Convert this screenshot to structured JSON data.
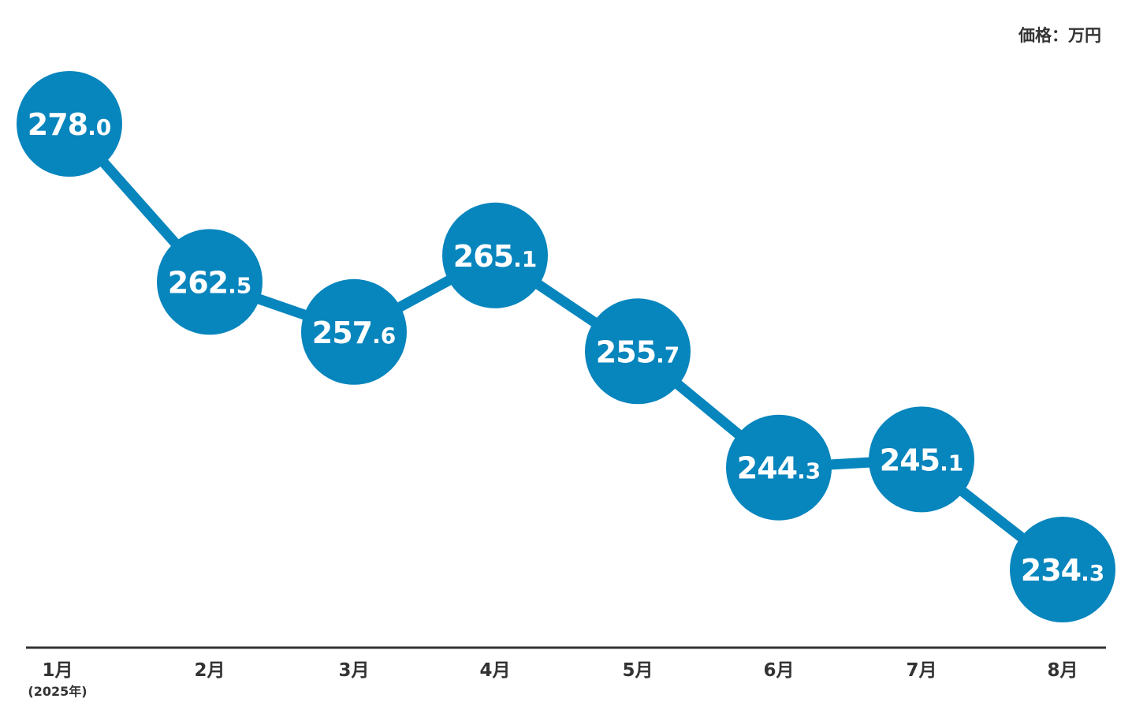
{
  "unit_label": "価格：万円",
  "colors": {
    "accent": "#0785bd",
    "axis": "#333333",
    "text": "#333333",
    "marker_text": "#ffffff"
  },
  "chart_data": {
    "type": "line",
    "title": "",
    "xlabel": "",
    "ylabel": "価格：万円",
    "categories": [
      "1月",
      "2月",
      "3月",
      "4月",
      "5月",
      "6月",
      "7月",
      "8月"
    ],
    "category_notes": [
      "(2025年)",
      "",
      "",
      "",
      "",
      "",
      "",
      ""
    ],
    "series": [
      {
        "values": [
          278.0,
          262.5,
          257.6,
          265.1,
          255.7,
          244.3,
          245.1,
          234.3
        ]
      }
    ],
    "data_labels": [
      "278.0",
      "262.5",
      "257.6",
      "265.1",
      "255.7",
      "244.3",
      "245.1",
      "234.3"
    ],
    "grid": false,
    "legend": "none"
  }
}
